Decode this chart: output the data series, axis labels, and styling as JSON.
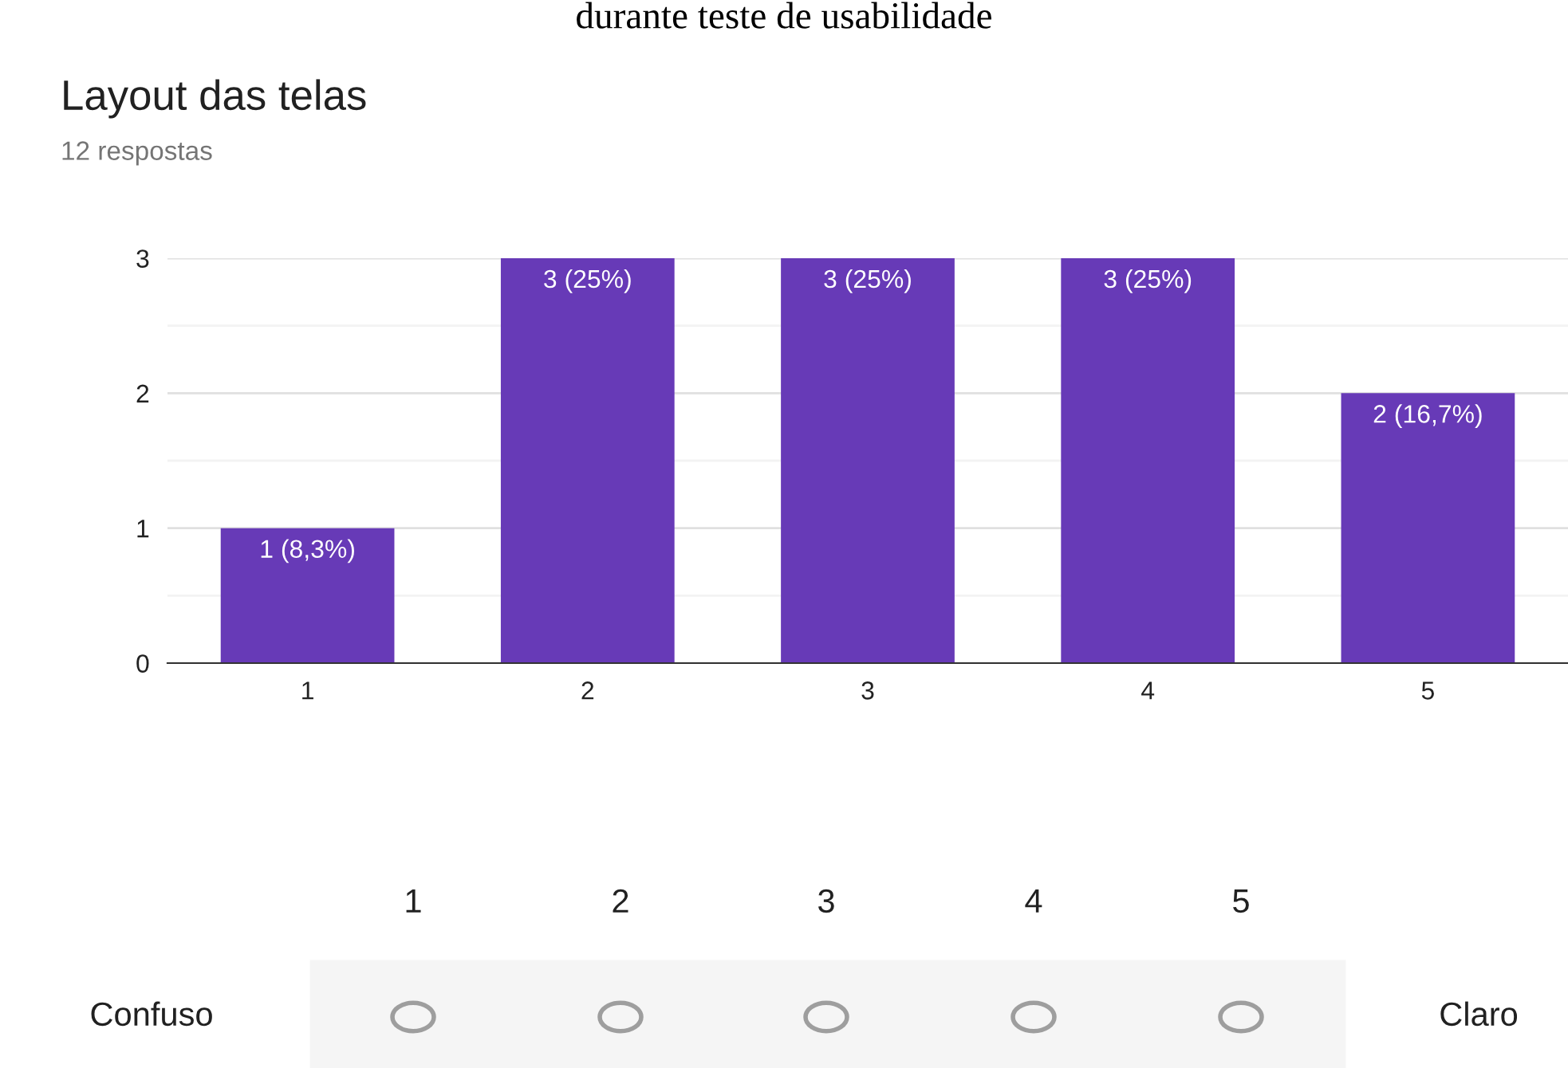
{
  "chart_data": {
    "type": "bar",
    "title": "Layout das telas",
    "subtitle": "12 respostas",
    "categories": [
      "1",
      "2",
      "3",
      "4",
      "5"
    ],
    "values": [
      1,
      3,
      3,
      3,
      2
    ],
    "value_labels": [
      "1 (8,3%)",
      "3 (25%)",
      "3 (25%)",
      "3 (25%)",
      "2 (16,7%)"
    ],
    "color": "#673ab7",
    "ylim": [
      0,
      3
    ],
    "yticks": [
      0,
      {
        "value": 0.5,
        "label": null
      },
      1,
      {
        "value": 1.5,
        "label": null
      },
      2,
      {
        "value": 2.5,
        "label": null
      },
      3
    ],
    "grid": "y",
    "annotations": [
      "durante teste de usabilidade",
      "1",
      "2",
      "3",
      "4",
      "5",
      "Confuso",
      "Claro"
    ]
  }
}
